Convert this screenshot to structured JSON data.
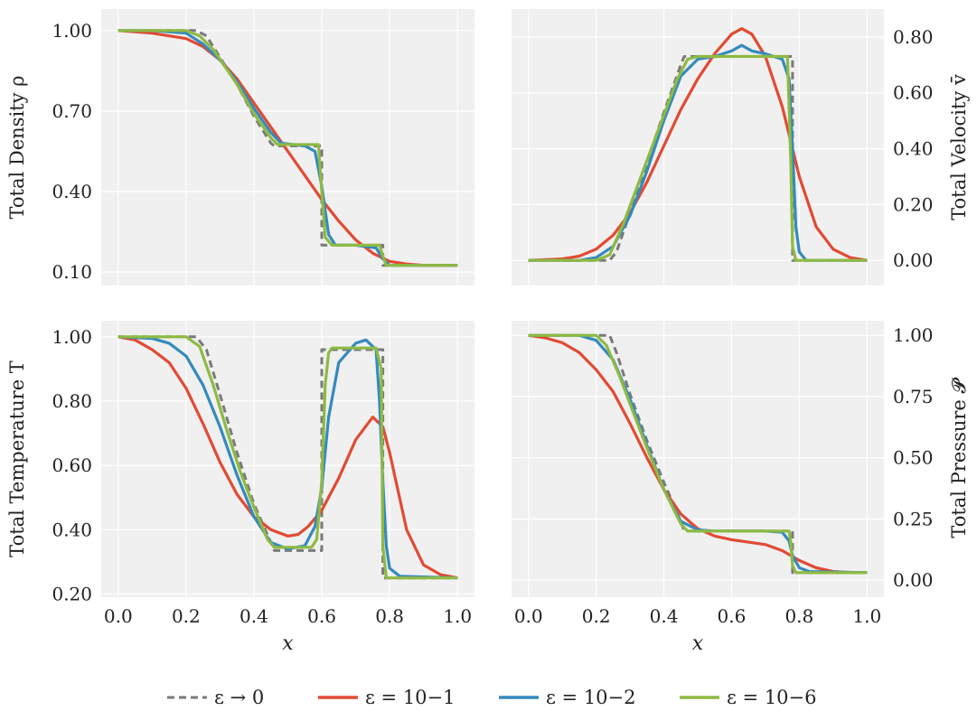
{
  "chart_data": [
    {
      "type": "line",
      "ylabel": "Total Density ρ",
      "xlim": [
        -0.05,
        1.05
      ],
      "ylim": [
        0.05,
        1.08
      ],
      "y_axis_side": "left",
      "x_tick_labels_shown": false,
      "xticks": [
        0.0,
        0.2,
        0.4,
        0.6,
        0.8,
        1.0
      ],
      "yticks": [
        0.1,
        0.4,
        0.7,
        1.0
      ],
      "ytick_labels": [
        "0.10",
        "0.40",
        "0.70",
        "1.00"
      ],
      "series": [
        {
          "name": "ε → 0",
          "x": [
            0.0,
            0.23,
            0.26,
            0.3,
            0.35,
            0.4,
            0.45,
            0.46,
            0.6,
            0.6,
            0.62,
            0.62,
            0.78,
            0.78,
            1.0
          ],
          "y": [
            1.0,
            1.0,
            0.98,
            0.9,
            0.8,
            0.68,
            0.58,
            0.57,
            0.57,
            0.2,
            0.2,
            0.2,
            0.2,
            0.125,
            0.125
          ]
        },
        {
          "name": "ε = 10^{-1}",
          "x": [
            0.0,
            0.1,
            0.2,
            0.25,
            0.3,
            0.35,
            0.4,
            0.45,
            0.5,
            0.55,
            0.6,
            0.65,
            0.7,
            0.75,
            0.8,
            0.85,
            0.9,
            1.0
          ],
          "y": [
            1.0,
            0.99,
            0.97,
            0.94,
            0.89,
            0.82,
            0.73,
            0.64,
            0.55,
            0.46,
            0.37,
            0.29,
            0.22,
            0.17,
            0.14,
            0.13,
            0.125,
            0.125
          ]
        },
        {
          "name": "ε = 10^{-2}",
          "x": [
            0.0,
            0.1,
            0.2,
            0.25,
            0.3,
            0.35,
            0.4,
            0.45,
            0.48,
            0.55,
            0.58,
            0.6,
            0.62,
            0.64,
            0.7,
            0.76,
            0.78,
            0.8,
            1.0
          ],
          "y": [
            1.0,
            1.0,
            0.99,
            0.95,
            0.89,
            0.81,
            0.71,
            0.62,
            0.58,
            0.57,
            0.55,
            0.42,
            0.24,
            0.2,
            0.2,
            0.19,
            0.15,
            0.125,
            0.125
          ]
        },
        {
          "name": "ε = 10^{-6}",
          "x": [
            0.0,
            0.2,
            0.24,
            0.28,
            0.35,
            0.4,
            0.45,
            0.47,
            0.59,
            0.6,
            0.61,
            0.63,
            0.77,
            0.78,
            0.79,
            1.0
          ],
          "y": [
            1.0,
            1.0,
            0.98,
            0.93,
            0.8,
            0.69,
            0.6,
            0.575,
            0.575,
            0.4,
            0.23,
            0.2,
            0.2,
            0.16,
            0.125,
            0.125
          ]
        }
      ]
    },
    {
      "type": "line",
      "ylabel": "Total Velocity v̄",
      "xlim": [
        -0.05,
        1.05
      ],
      "ylim": [
        -0.09,
        0.9
      ],
      "y_axis_side": "right",
      "x_tick_labels_shown": false,
      "xticks": [
        0.0,
        0.2,
        0.4,
        0.6,
        0.8,
        1.0
      ],
      "yticks": [
        0.0,
        0.2,
        0.4,
        0.6,
        0.8
      ],
      "ytick_labels": [
        "0.00",
        "0.20",
        "0.40",
        "0.60",
        "0.80"
      ],
      "series": [
        {
          "name": "ε → 0",
          "x": [
            0.0,
            0.24,
            0.26,
            0.3,
            0.35,
            0.4,
            0.45,
            0.46,
            0.78,
            0.78,
            1.0
          ],
          "y": [
            0.0,
            0.0,
            0.03,
            0.17,
            0.35,
            0.53,
            0.7,
            0.73,
            0.73,
            0.0,
            0.0
          ]
        },
        {
          "name": "ε = 10^{-1}",
          "x": [
            0.0,
            0.1,
            0.15,
            0.2,
            0.25,
            0.3,
            0.35,
            0.4,
            0.45,
            0.5,
            0.55,
            0.6,
            0.63,
            0.66,
            0.7,
            0.75,
            0.8,
            0.85,
            0.9,
            0.95,
            1.0
          ],
          "y": [
            0.0,
            0.005,
            0.015,
            0.04,
            0.09,
            0.17,
            0.28,
            0.41,
            0.54,
            0.65,
            0.74,
            0.81,
            0.83,
            0.81,
            0.73,
            0.55,
            0.3,
            0.12,
            0.04,
            0.01,
            0.0
          ]
        },
        {
          "name": "ε = 10^{-2}",
          "x": [
            0.0,
            0.15,
            0.2,
            0.25,
            0.3,
            0.35,
            0.4,
            0.45,
            0.5,
            0.55,
            0.6,
            0.63,
            0.66,
            0.7,
            0.75,
            0.77,
            0.78,
            0.79,
            0.8,
            0.82,
            1.0
          ],
          "y": [
            0.0,
            0.0,
            0.01,
            0.05,
            0.16,
            0.32,
            0.5,
            0.66,
            0.72,
            0.73,
            0.75,
            0.77,
            0.75,
            0.74,
            0.72,
            0.65,
            0.4,
            0.12,
            0.03,
            0.0,
            0.0
          ]
        },
        {
          "name": "ε = 10^{-6}",
          "x": [
            0.0,
            0.2,
            0.24,
            0.28,
            0.32,
            0.36,
            0.4,
            0.44,
            0.47,
            0.5,
            0.6,
            0.7,
            0.765,
            0.775,
            0.78,
            0.79,
            1.0
          ],
          "y": [
            0.0,
            0.0,
            0.02,
            0.13,
            0.26,
            0.39,
            0.52,
            0.65,
            0.72,
            0.73,
            0.73,
            0.73,
            0.73,
            0.35,
            0.05,
            0.0,
            0.0
          ]
        }
      ]
    },
    {
      "type": "line",
      "ylabel": "Total Temperature T",
      "xlabel": "x",
      "xlim": [
        -0.05,
        1.05
      ],
      "ylim": [
        0.19,
        1.05
      ],
      "y_axis_side": "left",
      "x_tick_labels_shown": true,
      "xticks": [
        0.0,
        0.2,
        0.4,
        0.6,
        0.8,
        1.0
      ],
      "xtick_labels": [
        "0.0",
        "0.2",
        "0.4",
        "0.6",
        "0.8",
        "1.0"
      ],
      "yticks": [
        0.2,
        0.4,
        0.6,
        0.8,
        1.0
      ],
      "ytick_labels": [
        "0.20",
        "0.40",
        "0.60",
        "0.80",
        "1.00"
      ],
      "series": [
        {
          "name": "ε → 0",
          "x": [
            0.0,
            0.23,
            0.26,
            0.3,
            0.35,
            0.4,
            0.45,
            0.46,
            0.6,
            0.6,
            0.62,
            0.62,
            0.78,
            0.78,
            1.0
          ],
          "y": [
            1.0,
            1.0,
            0.96,
            0.82,
            0.64,
            0.48,
            0.36,
            0.335,
            0.335,
            0.96,
            0.96,
            0.96,
            0.96,
            0.25,
            0.25
          ]
        },
        {
          "name": "ε = 10^{-1}",
          "x": [
            0.0,
            0.05,
            0.1,
            0.15,
            0.2,
            0.25,
            0.3,
            0.35,
            0.4,
            0.45,
            0.5,
            0.53,
            0.56,
            0.6,
            0.65,
            0.7,
            0.75,
            0.78,
            0.8,
            0.85,
            0.9,
            0.95,
            1.0
          ],
          "y": [
            1.0,
            0.99,
            0.96,
            0.92,
            0.84,
            0.73,
            0.61,
            0.51,
            0.44,
            0.4,
            0.38,
            0.385,
            0.41,
            0.46,
            0.56,
            0.68,
            0.75,
            0.72,
            0.64,
            0.4,
            0.29,
            0.26,
            0.25
          ]
        },
        {
          "name": "ε = 10^{-2}",
          "x": [
            0.0,
            0.1,
            0.15,
            0.2,
            0.25,
            0.3,
            0.35,
            0.4,
            0.45,
            0.5,
            0.55,
            0.58,
            0.6,
            0.62,
            0.65,
            0.7,
            0.73,
            0.76,
            0.77,
            0.78,
            0.79,
            0.8,
            0.83,
            1.0
          ],
          "y": [
            1.0,
            0.995,
            0.98,
            0.94,
            0.85,
            0.72,
            0.57,
            0.44,
            0.36,
            0.34,
            0.35,
            0.41,
            0.53,
            0.75,
            0.92,
            0.98,
            0.99,
            0.96,
            0.8,
            0.55,
            0.35,
            0.28,
            0.255,
            0.25
          ]
        },
        {
          "name": "ε = 10^{-6}",
          "x": [
            0.0,
            0.2,
            0.24,
            0.28,
            0.32,
            0.36,
            0.4,
            0.44,
            0.46,
            0.57,
            0.585,
            0.6,
            0.61,
            0.62,
            0.63,
            0.76,
            0.775,
            0.78,
            0.79,
            1.0
          ],
          "y": [
            1.0,
            1.0,
            0.97,
            0.85,
            0.71,
            0.58,
            0.47,
            0.37,
            0.345,
            0.345,
            0.37,
            0.55,
            0.85,
            0.95,
            0.965,
            0.965,
            0.9,
            0.35,
            0.25,
            0.25
          ]
        }
      ]
    },
    {
      "type": "line",
      "ylabel": "Total Pressure 𝓟",
      "xlabel": "x",
      "xlim": [
        -0.05,
        1.05
      ],
      "ylim": [
        -0.07,
        1.06
      ],
      "y_axis_side": "right",
      "x_tick_labels_shown": true,
      "xticks": [
        0.0,
        0.2,
        0.4,
        0.6,
        0.8,
        1.0
      ],
      "xtick_labels": [
        "0.0",
        "0.2",
        "0.4",
        "0.6",
        "0.8",
        "1.0"
      ],
      "yticks": [
        0.0,
        0.25,
        0.5,
        0.75,
        1.0
      ],
      "ytick_labels": [
        "0.00",
        "0.25",
        "0.50",
        "0.75",
        "1.00"
      ],
      "series": [
        {
          "name": "ε → 0",
          "x": [
            0.0,
            0.24,
            0.26,
            0.3,
            0.35,
            0.4,
            0.45,
            0.46,
            0.78,
            0.78,
            1.0
          ],
          "y": [
            1.0,
            1.0,
            0.93,
            0.76,
            0.57,
            0.4,
            0.24,
            0.2,
            0.2,
            0.03,
            0.03
          ]
        },
        {
          "name": "ε = 10^{-1}",
          "x": [
            0.0,
            0.05,
            0.1,
            0.15,
            0.2,
            0.25,
            0.3,
            0.35,
            0.4,
            0.45,
            0.5,
            0.55,
            0.6,
            0.65,
            0.7,
            0.75,
            0.8,
            0.85,
            0.9,
            0.95,
            1.0
          ],
          "y": [
            1.0,
            0.99,
            0.97,
            0.93,
            0.86,
            0.77,
            0.64,
            0.5,
            0.37,
            0.27,
            0.21,
            0.18,
            0.165,
            0.155,
            0.145,
            0.12,
            0.08,
            0.05,
            0.035,
            0.03,
            0.03
          ]
        },
        {
          "name": "ε = 10^{-2}",
          "x": [
            0.0,
            0.15,
            0.2,
            0.25,
            0.3,
            0.35,
            0.4,
            0.45,
            0.5,
            0.55,
            0.6,
            0.65,
            0.7,
            0.75,
            0.77,
            0.78,
            0.8,
            0.83,
            1.0
          ],
          "y": [
            1.0,
            1.0,
            0.98,
            0.9,
            0.74,
            0.55,
            0.37,
            0.24,
            0.205,
            0.2,
            0.2,
            0.2,
            0.2,
            0.195,
            0.16,
            0.1,
            0.05,
            0.035,
            0.03
          ]
        },
        {
          "name": "ε = 10^{-6}",
          "x": [
            0.0,
            0.2,
            0.23,
            0.27,
            0.3,
            0.35,
            0.4,
            0.45,
            0.47,
            0.6,
            0.7,
            0.77,
            0.775,
            0.78,
            0.79,
            1.0
          ],
          "y": [
            1.0,
            1.0,
            0.96,
            0.83,
            0.72,
            0.54,
            0.37,
            0.23,
            0.2,
            0.2,
            0.2,
            0.2,
            0.15,
            0.06,
            0.03,
            0.03
          ]
        }
      ]
    }
  ],
  "legend": {
    "placement": "bottom-center",
    "entries": [
      {
        "label": "ε → 0",
        "color": "#7a7a7a",
        "style": "dashed"
      },
      {
        "label": "ε = 10−1",
        "color": "#e24a33",
        "style": "solid"
      },
      {
        "label": "ε = 10−2",
        "color": "#348abd",
        "style": "solid"
      },
      {
        "label": "ε = 10−6",
        "color": "#8eba42",
        "style": "solid"
      }
    ]
  },
  "colors": {
    "panel_background": "#f0f0f0",
    "grid": "#ffffff",
    "series": [
      "#7a7a7a",
      "#e24a33",
      "#348abd",
      "#8eba42"
    ]
  },
  "grid": true
}
